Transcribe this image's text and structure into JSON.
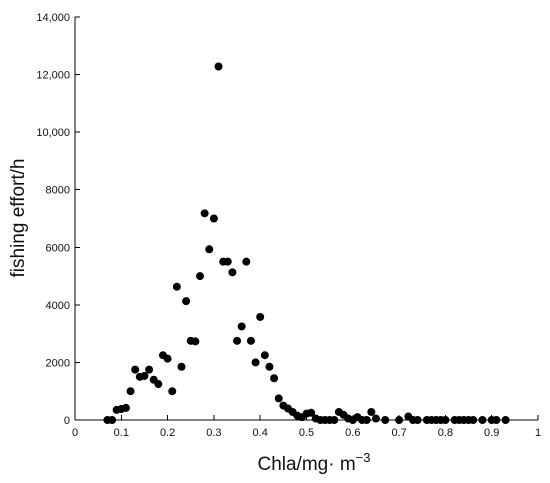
{
  "chart_data": {
    "type": "scatter",
    "title": "",
    "xlabel": "Chla/mg· m",
    "xlabel_superscript": "−3",
    "ylabel": "fishing effort/h",
    "xlim": [
      0,
      1
    ],
    "ylim": [
      0,
      14000
    ],
    "x_ticks": [
      0,
      0.1,
      0.2,
      0.3,
      0.4,
      0.5,
      0.6,
      0.7,
      0.8,
      0.9,
      1
    ],
    "x_tick_labels": [
      "0",
      "0.1",
      "0.2",
      "0.3",
      "0.4",
      "0.5",
      "0.6",
      "0.7",
      "0.8",
      "0.9",
      "1"
    ],
    "y_ticks": [
      0,
      2000,
      4000,
      6000,
      8000,
      10000,
      12000,
      14000
    ],
    "y_tick_labels": [
      "0",
      "2000",
      "4000",
      "6000",
      "8000",
      "10,000",
      "12,000",
      "14,000"
    ],
    "grid": false,
    "legend": "none",
    "marker_color": "#000000",
    "points": [
      {
        "x": 0.07,
        "y": 0
      },
      {
        "x": 0.08,
        "y": 0
      },
      {
        "x": 0.09,
        "y": 350
      },
      {
        "x": 0.1,
        "y": 380
      },
      {
        "x": 0.11,
        "y": 420
      },
      {
        "x": 0.12,
        "y": 1000
      },
      {
        "x": 0.13,
        "y": 1750
      },
      {
        "x": 0.14,
        "y": 1500
      },
      {
        "x": 0.15,
        "y": 1530
      },
      {
        "x": 0.16,
        "y": 1750
      },
      {
        "x": 0.17,
        "y": 1400
      },
      {
        "x": 0.18,
        "y": 1250
      },
      {
        "x": 0.19,
        "y": 2250
      },
      {
        "x": 0.2,
        "y": 2130
      },
      {
        "x": 0.21,
        "y": 1000
      },
      {
        "x": 0.22,
        "y": 4630
      },
      {
        "x": 0.23,
        "y": 1850
      },
      {
        "x": 0.24,
        "y": 4130
      },
      {
        "x": 0.25,
        "y": 2750
      },
      {
        "x": 0.26,
        "y": 2730
      },
      {
        "x": 0.27,
        "y": 5000
      },
      {
        "x": 0.28,
        "y": 7180
      },
      {
        "x": 0.29,
        "y": 5930
      },
      {
        "x": 0.3,
        "y": 7000
      },
      {
        "x": 0.31,
        "y": 12280
      },
      {
        "x": 0.32,
        "y": 5500
      },
      {
        "x": 0.33,
        "y": 5500
      },
      {
        "x": 0.34,
        "y": 5130
      },
      {
        "x": 0.35,
        "y": 2750
      },
      {
        "x": 0.36,
        "y": 3250
      },
      {
        "x": 0.37,
        "y": 5500
      },
      {
        "x": 0.38,
        "y": 2750
      },
      {
        "x": 0.39,
        "y": 2000
      },
      {
        "x": 0.4,
        "y": 3580
      },
      {
        "x": 0.41,
        "y": 2250
      },
      {
        "x": 0.42,
        "y": 1850
      },
      {
        "x": 0.43,
        "y": 1450
      },
      {
        "x": 0.44,
        "y": 750
      },
      {
        "x": 0.45,
        "y": 500
      },
      {
        "x": 0.46,
        "y": 400
      },
      {
        "x": 0.47,
        "y": 280
      },
      {
        "x": 0.48,
        "y": 150
      },
      {
        "x": 0.49,
        "y": 100
      },
      {
        "x": 0.5,
        "y": 220
      },
      {
        "x": 0.51,
        "y": 250
      },
      {
        "x": 0.52,
        "y": 50
      },
      {
        "x": 0.53,
        "y": 0
      },
      {
        "x": 0.54,
        "y": 0
      },
      {
        "x": 0.55,
        "y": 0
      },
      {
        "x": 0.56,
        "y": 0
      },
      {
        "x": 0.57,
        "y": 280
      },
      {
        "x": 0.58,
        "y": 180
      },
      {
        "x": 0.59,
        "y": 50
      },
      {
        "x": 0.6,
        "y": 0
      },
      {
        "x": 0.61,
        "y": 100
      },
      {
        "x": 0.62,
        "y": 0
      },
      {
        "x": 0.63,
        "y": 0
      },
      {
        "x": 0.64,
        "y": 280
      },
      {
        "x": 0.65,
        "y": 50
      },
      {
        "x": 0.67,
        "y": 0
      },
      {
        "x": 0.7,
        "y": 0
      },
      {
        "x": 0.72,
        "y": 120
      },
      {
        "x": 0.73,
        "y": 0
      },
      {
        "x": 0.74,
        "y": 0
      },
      {
        "x": 0.76,
        "y": 0
      },
      {
        "x": 0.77,
        "y": 0
      },
      {
        "x": 0.78,
        "y": 0
      },
      {
        "x": 0.79,
        "y": 0
      },
      {
        "x": 0.8,
        "y": 0
      },
      {
        "x": 0.82,
        "y": 0
      },
      {
        "x": 0.83,
        "y": 0
      },
      {
        "x": 0.84,
        "y": 0
      },
      {
        "x": 0.85,
        "y": 0
      },
      {
        "x": 0.86,
        "y": 0
      },
      {
        "x": 0.88,
        "y": 0
      },
      {
        "x": 0.9,
        "y": 0
      },
      {
        "x": 0.91,
        "y": 0
      },
      {
        "x": 0.93,
        "y": 0
      }
    ]
  }
}
